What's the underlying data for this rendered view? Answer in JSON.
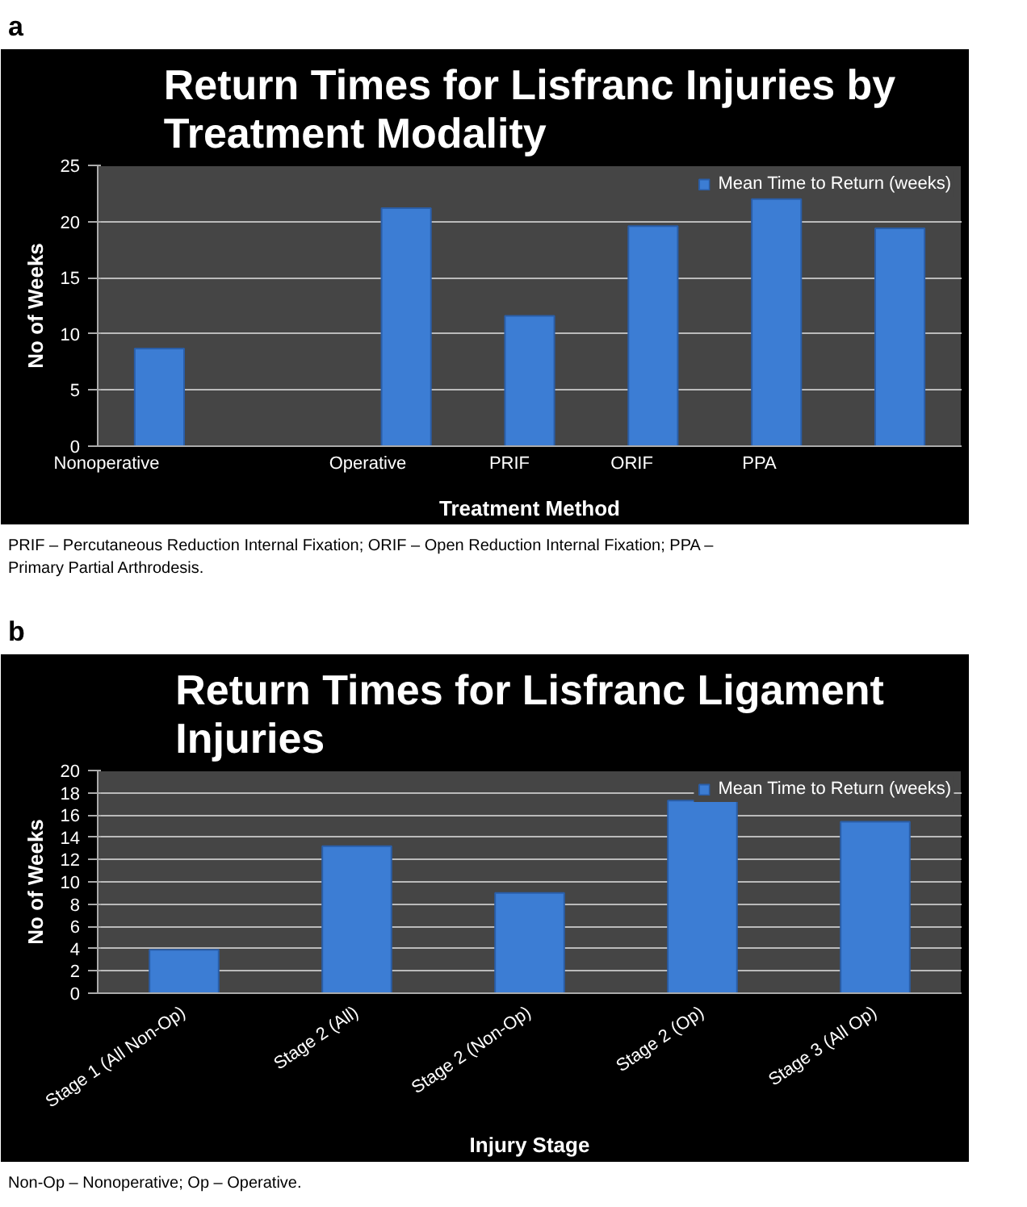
{
  "chart_data": [
    {
      "type": "bar",
      "title": "Return Times for Lisfranc Injuries by Treatment Modality",
      "xlabel": "Treatment Method",
      "ylabel": "No of Weeks",
      "categories": [
        "Nonoperative",
        null,
        "Operative",
        "PRIF",
        "ORIF",
        "PPA",
        null
      ],
      "series": [
        {
          "name": "Mean Time to Return (weeks)",
          "color": "#3c7dd4",
          "values": [
            8.7,
            null,
            21.2,
            11.6,
            19.6,
            22.0,
            19.4
          ]
        }
      ],
      "ylim": [
        0,
        25
      ],
      "yticks": [
        0,
        5,
        10,
        15,
        20,
        25
      ],
      "grid": "y",
      "legend": "top right",
      "annotations": [
        "a",
        "PRIF – Percutaneous Reduction Internal Fixation; ORIF – Open Reduction Internal Fixation; PPA – Primary Partial Arthrodesis."
      ]
    },
    {
      "type": "bar",
      "title": "Return Times for Lisfranc Ligament Injuries",
      "xlabel": "Injury Stage",
      "ylabel": "No of Weeks",
      "categories": [
        "Stage 1 (All Non-Op)",
        "Stage 2 (All)",
        "Stage 2 (Non-Op)",
        "Stage 2 (Op)",
        "Stage 3 (All Op)"
      ],
      "series": [
        {
          "name": "Mean Time to Return (weeks)",
          "color": "#3c7dd4",
          "values": [
            3.9,
            13.2,
            9.0,
            17.3,
            15.4
          ]
        }
      ],
      "ylim": [
        0,
        20
      ],
      "yticks": [
        0,
        2,
        4,
        6,
        8,
        10,
        12,
        14,
        16,
        18,
        20
      ],
      "grid": "y",
      "legend": "top right",
      "annotations": [
        "b",
        "Non-Op – Nonoperative; Op – Operative."
      ]
    }
  ]
}
